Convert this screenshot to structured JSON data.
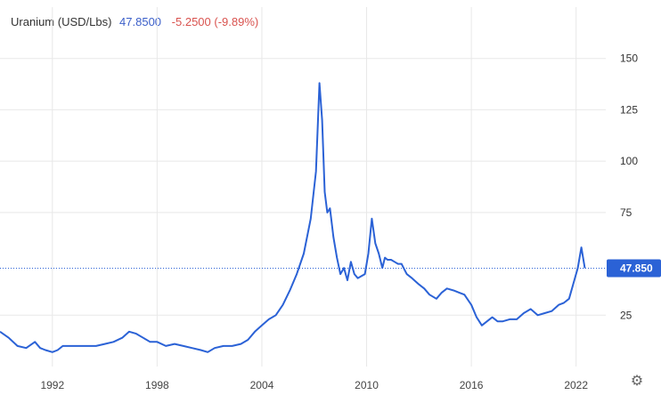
{
  "header": {
    "title": "Uranium (USD/Lbs)",
    "price": "47.8500",
    "change": "-5.2500 (-9.89%)"
  },
  "price_tag": "47.850",
  "settings_icon": "gear-icon",
  "colors": {
    "line": "#2b62d6",
    "price": "#3b5fc9",
    "change": "#d9534f",
    "grid": "#e8e8e8"
  },
  "chart_data": {
    "type": "line",
    "title": "Uranium (USD/Lbs)",
    "xlabel": "",
    "ylabel": "",
    "xlim": [
      1989,
      2023.7
    ],
    "ylim": [
      0,
      162
    ],
    "yticks": [
      25,
      75,
      100,
      125,
      150
    ],
    "xticks": [
      1992,
      1998,
      2004,
      2010,
      2016,
      2022
    ],
    "grid": true,
    "axis_side": "right",
    "last_value": 47.85,
    "series": [
      {
        "x": [
          1989.0,
          1989.5,
          1990.0,
          1990.5,
          1991.0,
          1991.3,
          1991.6,
          1992.0,
          1992.3,
          1992.6,
          1993.0,
          1993.5,
          1994.0,
          1994.5,
          1995.0,
          1995.5,
          1996.0,
          1996.4,
          1996.8,
          1997.2,
          1997.6,
          1998.0,
          1998.5,
          1999.0,
          1999.5,
          2000.0,
          2000.5,
          2000.9,
          2001.3,
          2001.8,
          2002.3,
          2002.8,
          2003.2,
          2003.6,
          2004.0,
          2004.4,
          2004.8,
          2005.2,
          2005.6,
          2006.0,
          2006.4,
          2006.8,
          2007.1,
          2007.3,
          2007.45,
          2007.6,
          2007.75,
          2007.9,
          2008.1,
          2008.3,
          2008.5,
          2008.7,
          2008.9,
          2009.1,
          2009.3,
          2009.5,
          2009.7,
          2009.9,
          2010.1,
          2010.3,
          2010.5,
          2010.7,
          2010.9,
          2011.05,
          2011.2,
          2011.4,
          2011.6,
          2011.8,
          2012.0,
          2012.3,
          2012.6,
          2013.0,
          2013.3,
          2013.6,
          2014.0,
          2014.3,
          2014.6,
          2015.0,
          2015.3,
          2015.6,
          2016.0,
          2016.3,
          2016.6,
          2016.9,
          2017.2,
          2017.5,
          2017.8,
          2018.2,
          2018.6,
          2019.0,
          2019.4,
          2019.8,
          2020.2,
          2020.6,
          2021.0,
          2021.3,
          2021.6,
          2021.9,
          2022.1,
          2022.3,
          2022.5
        ],
        "y": [
          17,
          14,
          10,
          9,
          12,
          9,
          8,
          7,
          8,
          10,
          10,
          10,
          10,
          10,
          11,
          12,
          14,
          17,
          16,
          14,
          12,
          12,
          10,
          11,
          10,
          9,
          8,
          7,
          9,
          10,
          10,
          11,
          13,
          17,
          20,
          23,
          25,
          30,
          37,
          45,
          55,
          72,
          95,
          138,
          120,
          85,
          75,
          77,
          63,
          53,
          45,
          48,
          42,
          51,
          45,
          43,
          44,
          45,
          55,
          72,
          60,
          55,
          48,
          53,
          52,
          52,
          51,
          50,
          50,
          45,
          43,
          40,
          38,
          35,
          33,
          36,
          38,
          37,
          36,
          35,
          30,
          24,
          20,
          22,
          24,
          22,
          22,
          23,
          23,
          26,
          28,
          25,
          26,
          27,
          30,
          31,
          33,
          42,
          48,
          58,
          47.85
        ]
      }
    ]
  }
}
